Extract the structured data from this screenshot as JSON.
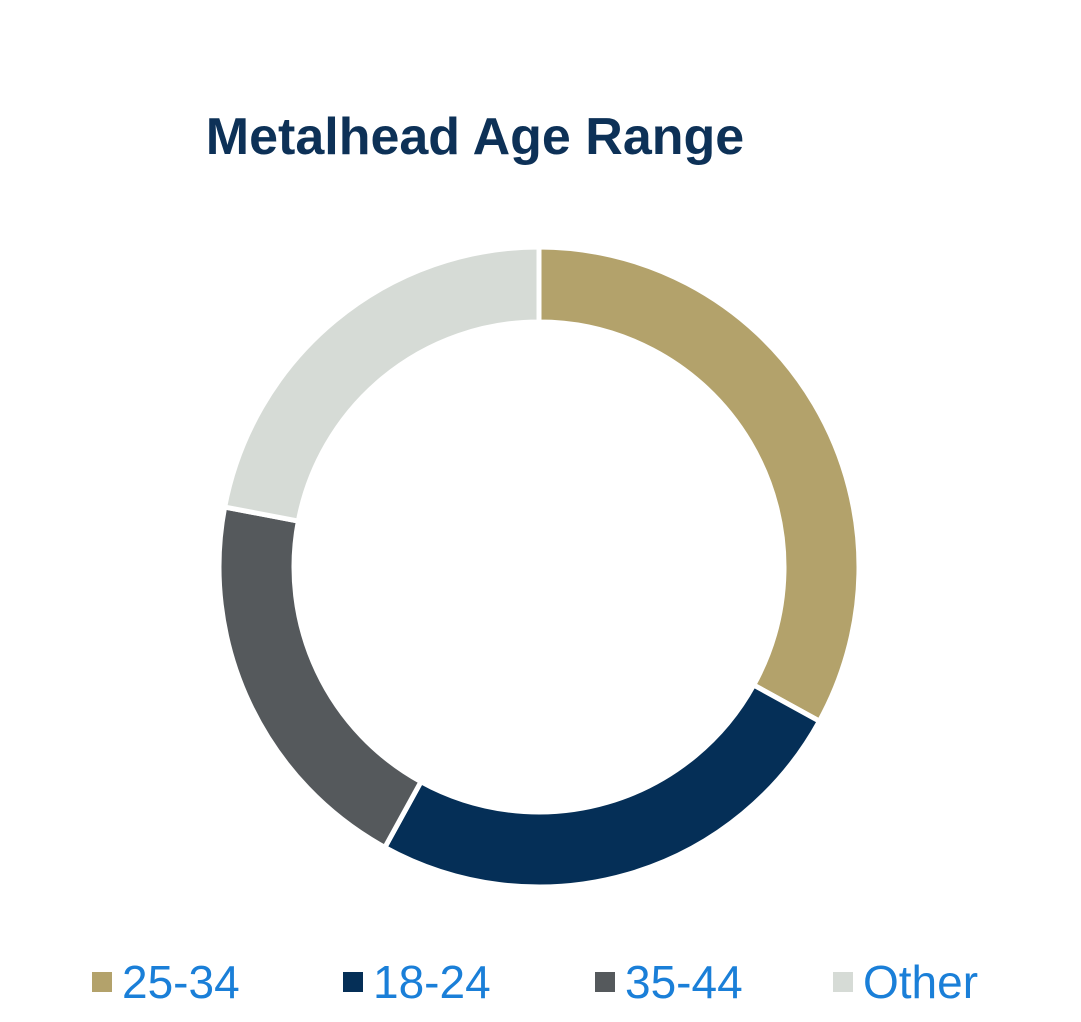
{
  "chart_data": {
    "type": "pie",
    "style": "donut",
    "title": "Metalhead Age Range",
    "categories": [
      "25-34",
      "18-24",
      "35-44",
      "Other"
    ],
    "values": [
      33,
      25,
      20,
      22
    ],
    "colors": [
      "#b3a26b",
      "#052f57",
      "#55595c",
      "#d6dbd6"
    ],
    "legend_position": "bottom",
    "data_labels": false
  }
}
